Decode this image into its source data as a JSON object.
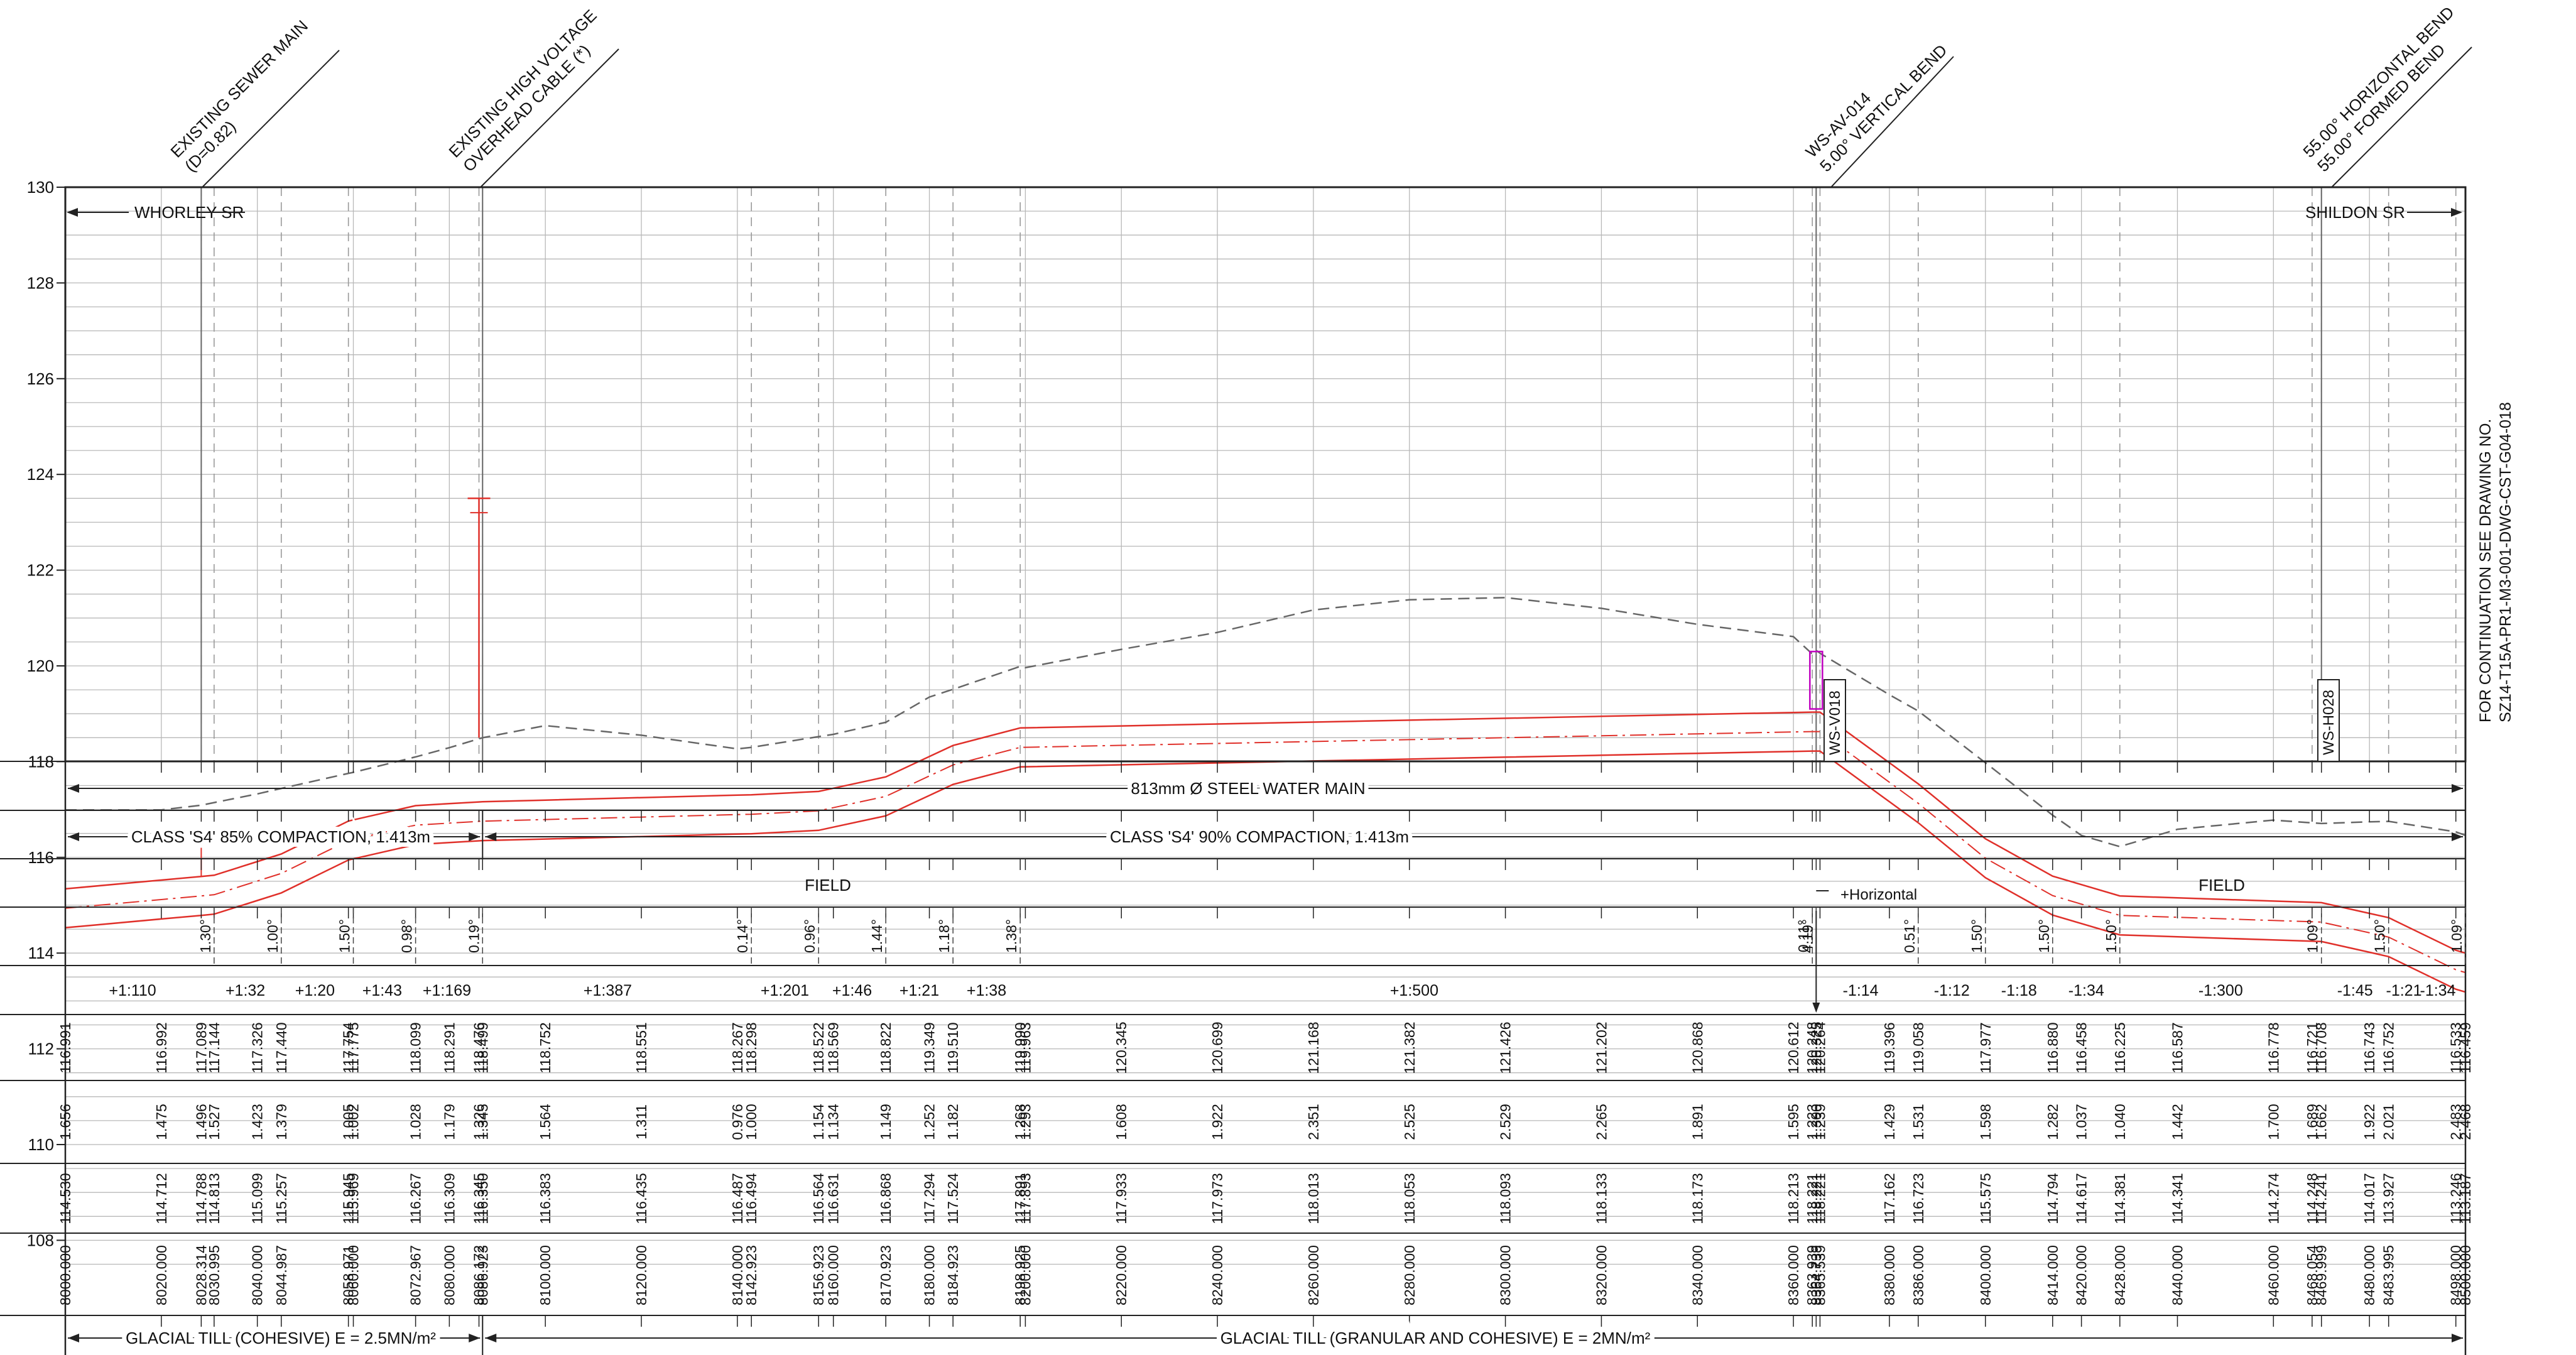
{
  "callouts": [
    {
      "lines": [
        "EXISTING SEWER MAIN",
        "(D=0.82)"
      ]
    },
    {
      "lines": [
        "EXISTING HIGH VOLTAGE",
        "OVERHEAD CABLE (*)"
      ]
    },
    {
      "lines": [
        "WS-AV-014",
        "5.00° VERTICAL BEND"
      ]
    },
    {
      "lines": [
        "55.00° HORIZONTAL BEND",
        "55.00° FORMED BEND"
      ]
    }
  ],
  "left_road": "WHORLEY SR",
  "right_road": "SHILDON SR",
  "continuation_note": [
    "FOR CONTINUATION SEE DRAWING NO.",
    "SZ14-T15A-PR1-M3-001-DWG-CST-G04-018"
  ],
  "y_axis_labels": [
    "130",
    "128",
    "126",
    "124",
    "122",
    "120",
    "118",
    "116",
    "114",
    "112",
    "110",
    "108"
  ],
  "structure_tags": [
    "WS-V018",
    "WS-H028"
  ],
  "main_label": "813mm Ø STEEL WATER MAIN",
  "compaction": [
    "CLASS 'S4' 85% COMPACTION, 1.413m",
    "CLASS 'S4' 90% COMPACTION, 1.413m"
  ],
  "landuse": [
    "FIELD",
    "FIELD"
  ],
  "horizontal_note": "+Horizontal",
  "bend_angles": [
    "1.30°",
    "1.00°",
    "1.50°",
    "0.98°",
    "0.19°",
    "0.14°",
    "0.96°",
    "1.44°",
    "1.18°",
    "1.38°",
    "0.11°",
    "4.19°",
    "0.51°",
    "1.50°",
    "1.50°",
    "1.50°",
    "1.09°",
    "1.50°",
    "1.09°"
  ],
  "gradients": [
    "+1:110",
    "+1:32",
    "+1:20",
    "+1:43",
    "+1:169",
    "+1:387",
    "+1:201",
    "+1:46",
    "+1:21",
    "+1:38",
    "+1:500",
    "-1:14",
    "-1:12",
    "-1:18",
    "-1:34",
    "-1:300",
    "-1:45",
    "-1:21",
    "-1:34"
  ],
  "ground_levels": [
    "116.991",
    "116.992",
    "117.089",
    "117.144",
    "117.326",
    "117.440",
    "117.754",
    "117.775",
    "118.099",
    "118.291",
    "118.476",
    "118.499",
    "118.752",
    "118.551",
    "118.267",
    "118.298",
    "118.522",
    "118.569",
    "118.822",
    "119.349",
    "119.510",
    "119.990",
    "119.963",
    "120.345",
    "120.699",
    "121.168",
    "121.382",
    "121.426",
    "121.202",
    "120.868",
    "120.612",
    "120.248",
    "120.325",
    "120.264",
    "119.396",
    "119.058",
    "117.977",
    "116.880",
    "116.458",
    "116.225",
    "116.587",
    "116.778",
    "116.721",
    "116.708",
    "116.743",
    "116.752",
    "116.533",
    "116.459"
  ],
  "covers": [
    "1.656",
    "1.475",
    "1.496",
    "1.527",
    "1.423",
    "1.379",
    "1.005",
    "1.002",
    "1.028",
    "1.179",
    "1.326",
    "1.345",
    "1.564",
    "1.311",
    "0.976",
    "1.000",
    "1.154",
    "1.134",
    "1.149",
    "1.252",
    "1.182",
    "1.268",
    "1.293",
    "1.608",
    "1.922",
    "2.351",
    "2.525",
    "2.529",
    "2.265",
    "1.891",
    "1.595",
    "1.223",
    "1.300",
    "1.239",
    "1.429",
    "1.531",
    "1.598",
    "1.282",
    "1.037",
    "1.040",
    "1.442",
    "1.700",
    "1.689",
    "1.662",
    "1.922",
    "2.021",
    "2.483",
    "2.468"
  ],
  "invert_levels": [
    "114.530",
    "114.712",
    "114.788",
    "114.813",
    "115.099",
    "115.257",
    "115.945",
    "115.969",
    "116.267",
    "116.309",
    "116.345",
    "116.350",
    "116.383",
    "116.435",
    "116.487",
    "116.494",
    "116.564",
    "116.631",
    "116.868",
    "117.294",
    "117.524",
    "117.891",
    "117.893",
    "117.933",
    "117.973",
    "118.013",
    "118.053",
    "118.093",
    "118.133",
    "118.173",
    "118.213",
    "118.221",
    "118.221",
    "118.221",
    "117.162",
    "116.723",
    "115.575",
    "114.794",
    "114.617",
    "114.381",
    "114.341",
    "114.274",
    "114.248",
    "114.241",
    "114.017",
    "113.927",
    "113.246",
    "113.187"
  ],
  "chainages": [
    "8000.000",
    "8020.000",
    "8028.314",
    "8030.995",
    "8040.000",
    "8044.987",
    "8058.971",
    "8060.000",
    "8072.967",
    "8080.000",
    "8086.172",
    "8086.923",
    "8100.000",
    "8120.000",
    "8140.000",
    "8142.923",
    "8156.923",
    "8160.000",
    "8170.923",
    "8180.000",
    "8184.923",
    "8198.925",
    "8200.000",
    "8220.000",
    "8240.000",
    "8260.000",
    "8280.000",
    "8300.000",
    "8320.000",
    "8340.000",
    "8360.000",
    "8363.939",
    "8364.739",
    "8365.539",
    "8380.000",
    "8386.000",
    "8400.000",
    "8414.000",
    "8420.000",
    "8428.000",
    "8440.000",
    "8460.000",
    "8468.054",
    "8469.999",
    "8480.000",
    "8483.995",
    "8498.000",
    "8500.000"
  ],
  "geology": [
    "GLACIAL TILL (COHESIVE) E = 2.5MN/m²",
    "GLACIAL TILL (GRANULAR AND COHESIVE) E = 2MN/m²"
  ],
  "colors": {
    "pipe": "#e0302a",
    "ground": "#666666",
    "grid": "#b8b8b8",
    "marker": "#c000c0",
    "ink": "#111111"
  }
}
